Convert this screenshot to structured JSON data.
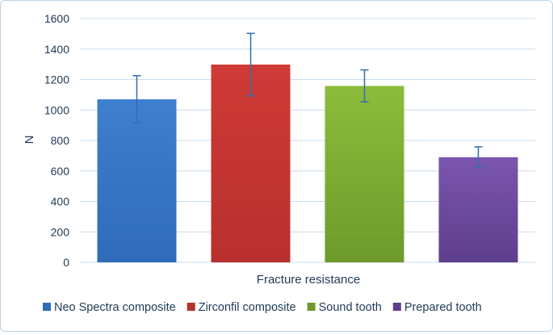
{
  "chart_data": {
    "type": "bar",
    "xlabel": "Fracture resistance",
    "ylabel": "N",
    "ylim": [
      0,
      1600
    ],
    "yticks": [
      0,
      200,
      400,
      600,
      800,
      1000,
      1200,
      1400,
      1600
    ],
    "grid": true,
    "legend_position": "bottom",
    "series": [
      {
        "name": "Neo Spectra composite",
        "value": 1070,
        "error": 155,
        "color": "#2f6bb8",
        "color_light": "#3f7fcf"
      },
      {
        "name": "Zirconfil composite",
        "value": 1298,
        "error": 205,
        "color": "#b8302e",
        "color_light": "#cf3a36"
      },
      {
        "name": "Sound tooth",
        "value": 1158,
        "error": 105,
        "color": "#6e9a2c",
        "color_light": "#8dbc3b"
      },
      {
        "name": "Prepared tooth",
        "value": 690,
        "error": 68,
        "color": "#5e3f8c",
        "color_light": "#7b55ae"
      }
    ],
    "colors": {
      "axis_text": "#1f3b57",
      "grid": "#c9dcec",
      "error_bar": "#2f6fb0",
      "frame": "#bcd3e6"
    }
  }
}
